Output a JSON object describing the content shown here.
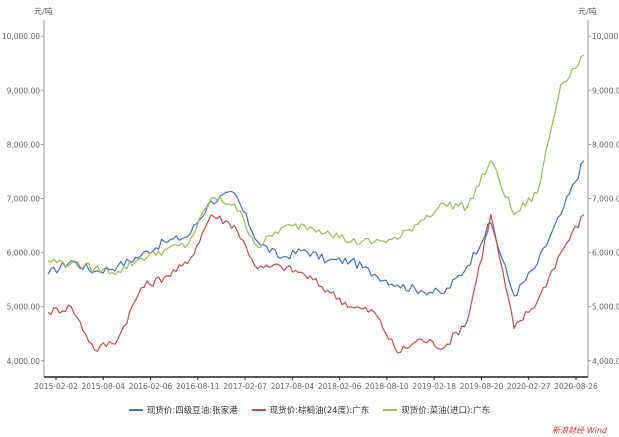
{
  "chart_data": {
    "type": "line",
    "y_unit_left": "元/吨",
    "y_unit_right": "元/吨",
    "ylim": [
      3700,
      10300
    ],
    "y_ticks": [
      "4,000.00",
      "5,000.00",
      "6,000.00",
      "7,000.00",
      "8,000.00",
      "9,000.00",
      "10,000.00"
    ],
    "x_ticks": [
      "2015-02-02",
      "2015-08-04",
      "2016-02-06",
      "2016-08-11",
      "2017-02-07",
      "2017-08-04",
      "2018-02-06",
      "2018-08-10",
      "2019-02-18",
      "2019-08-20",
      "2020-02-27",
      "2020-08-26"
    ],
    "x": [
      "2015-02",
      "2015-05",
      "2015-08",
      "2015-11",
      "2016-02",
      "2016-05",
      "2016-08",
      "2016-11",
      "2017-02",
      "2017-05",
      "2017-08",
      "2017-11",
      "2018-02",
      "2018-05",
      "2018-08",
      "2018-11",
      "2019-02",
      "2019-05",
      "2019-08",
      "2019-11",
      "2020-02",
      "2020-05",
      "2020-08",
      "2020-10"
    ],
    "series": [
      {
        "name": "现货价:四级豆油:张家港",
        "color": "#4472c4",
        "values": [
          5600,
          5850,
          5650,
          5750,
          5950,
          6200,
          6300,
          6950,
          7100,
          6200,
          5900,
          6050,
          5850,
          5850,
          5600,
          5400,
          5300,
          5250,
          5750,
          6550,
          5200,
          5800,
          6700,
          7700
        ]
      },
      {
        "name": "现货价:棕榈油(24度):广东",
        "color": "#c0504d",
        "values": [
          4900,
          5000,
          4200,
          4400,
          5350,
          5550,
          5800,
          6700,
          6500,
          5700,
          5750,
          5600,
          5300,
          5000,
          4900,
          4150,
          4400,
          4250,
          4750,
          6700,
          4600,
          5100,
          6000,
          6700
        ]
      },
      {
        "name": "现货价:菜油(进口):广东",
        "color": "#9bbb59",
        "values": [
          5850,
          5800,
          5700,
          5650,
          5900,
          6050,
          6150,
          7000,
          6900,
          6100,
          6450,
          6500,
          6400,
          6200,
          6200,
          6250,
          6600,
          6900,
          6850,
          7700,
          6700,
          7100,
          9100,
          9650
        ]
      }
    ]
  },
  "source": "新浪财经 Wind"
}
